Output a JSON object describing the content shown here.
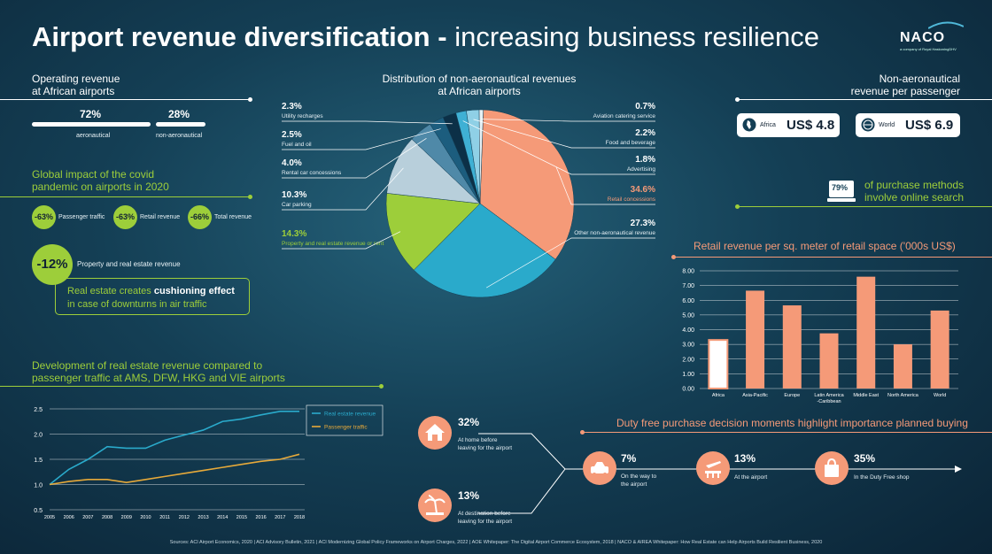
{
  "title": {
    "bold": "Airport revenue diversification -",
    "light": "increasing business resilience"
  },
  "logo": {
    "name": "NACO",
    "sub": "a company of Royal HaskoningDHV"
  },
  "operating": {
    "title1": "Operating revenue",
    "title2": "at African airports",
    "aero_pct": "72%",
    "aero_label": "aeronautical",
    "nonaero_pct": "28%",
    "nonaero_label": "non-aeronautical"
  },
  "covid": {
    "title1": "Global impact of the covid",
    "title2": "pandemic on airports in 2020",
    "items": [
      {
        "value": "-63%",
        "label": "Passenger traffic"
      },
      {
        "value": "-63%",
        "label": "Retail revenue"
      },
      {
        "value": "-66%",
        "label": "Total revenue"
      }
    ],
    "real_estate_value": "-12%",
    "real_estate_label": "Property and real estate revenue",
    "cushion_pre": "Real estate creates",
    "cushion_bold": "cushioning effect",
    "cushion_post": "in case of downturns in air traffic"
  },
  "pie_title1": "Distribution of non-aeronautical revenues",
  "pie_title2": "at African airports",
  "per_passenger": {
    "title1": "Non-aeronautical",
    "title2": "revenue per passenger",
    "africa_label": "Africa",
    "africa_value": "US$ 4.8",
    "world_label": "World",
    "world_value": "US$ 6.9"
  },
  "online": {
    "value": "79%",
    "text1": "of purchase methods",
    "text2": "involve online search"
  },
  "retail_title": "Retail revenue per sq. meter of retail space ('000s US$)",
  "line_title1": "Development of real estate revenue compared to",
  "line_title2": "passenger traffic at AMS, DFW, HKG and VIE airports",
  "dutyfree": {
    "title": "Duty free purchase decision moments highlight importance planned buying",
    "home_pct": "32%",
    "home_text1": "At home before",
    "home_text2": "leaving for the airport",
    "dest_pct": "13%",
    "dest_text1": "At destination before",
    "dest_text2": "leaving for the airport",
    "way_pct": "7%",
    "way_text1": "On the way to",
    "way_text2": "the airport",
    "airport_pct": "13%",
    "airport_text": "At the airport",
    "shop_pct": "35%",
    "shop_text": "In the Duty Free shop"
  },
  "sources": "Sources: ACI Airport Economics, 2020  |  ACI Advisory Bulletin, 2021  |  ACI Modernizing Global Policy Frameworks on Airport Charges, 2022  |  AOE Whitepaper: The Digital Airport Commerce Ecosystem, 2018  |  NACO & AIREA Whitepaper: How Real Estate can Help Airports Build Resilient Business, 2020",
  "colors": {
    "green": "#9dce3a",
    "salmon": "#f59a78",
    "teal": "#2aaacb",
    "white": "#ffffff"
  },
  "chart_data": [
    {
      "type": "pie",
      "title": "Distribution of non-aeronautical revenues at African airports",
      "slices": [
        {
          "label": "Retail concessions",
          "value": 34.6,
          "pct": "34.6%",
          "color": "#f59a78"
        },
        {
          "label": "Other non-aeronautical revenue",
          "value": 27.3,
          "pct": "27.3%",
          "color": "#2aaacb"
        },
        {
          "label": "Property and real estate revenue or rent",
          "value": 14.3,
          "pct": "14.3%",
          "color": "#9dce3a"
        },
        {
          "label": "Car parking",
          "value": 10.3,
          "pct": "10.3%",
          "color": "#b8cfdb"
        },
        {
          "label": "Rental car concessions",
          "value": 4.0,
          "pct": "4.0%",
          "color": "#4f89a8"
        },
        {
          "label": "Fuel and oil",
          "value": 2.5,
          "pct": "2.5%",
          "color": "#1c5d7e"
        },
        {
          "label": "Utility recharges",
          "value": 2.3,
          "pct": "2.3%",
          "color": "#0c3047"
        },
        {
          "label": "Advertising",
          "value": 1.8,
          "pct": "1.8%",
          "color": "#3fb0d4"
        },
        {
          "label": "Food and beverage",
          "value": 2.2,
          "pct": "2.2%",
          "color": "#8fd0e6"
        },
        {
          "label": "Aviation catering service",
          "value": 0.7,
          "pct": "0.7%",
          "color": "#e6f1f5"
        }
      ]
    },
    {
      "type": "bar",
      "title": "Retail revenue per sq. meter of retail space ('000s US$)",
      "categories": [
        "Africa",
        "Asia-Pacific",
        "Europe",
        "Latin America -Caribbean",
        "Middle East",
        "North America",
        "World"
      ],
      "values": [
        3.3,
        6.65,
        5.65,
        3.75,
        7.6,
        3.0,
        5.3
      ],
      "ylim": [
        0,
        8
      ],
      "yticks": [
        "0.00",
        "1.00",
        "2.00",
        "3.00",
        "4.00",
        "5.00",
        "6.00",
        "7.00",
        "8.00"
      ]
    },
    {
      "type": "line",
      "title": "Development of real estate revenue compared to passenger traffic at AMS, DFW, HKG and VIE airports",
      "x": [
        "2005",
        "2006",
        "2007",
        "2008",
        "2009",
        "2010",
        "2011",
        "2012",
        "2013",
        "2014",
        "2015",
        "2016",
        "2017",
        "2018"
      ],
      "series": [
        {
          "name": "Real estate revenue",
          "color": "#2aaacb",
          "values": [
            1.0,
            1.3,
            1.5,
            1.75,
            1.72,
            1.72,
            1.88,
            1.98,
            2.08,
            2.25,
            2.3,
            2.38,
            2.45,
            2.45
          ]
        },
        {
          "name": "Passenger traffic",
          "color": "#e6a93a",
          "values": [
            1.0,
            1.06,
            1.1,
            1.1,
            1.04,
            1.1,
            1.16,
            1.22,
            1.28,
            1.34,
            1.4,
            1.46,
            1.5,
            1.6
          ]
        }
      ],
      "ylim": [
        0.5,
        2.5
      ],
      "yticks": [
        "0.5",
        "1.0",
        "1.5",
        "2.0",
        "2.5"
      ]
    }
  ]
}
